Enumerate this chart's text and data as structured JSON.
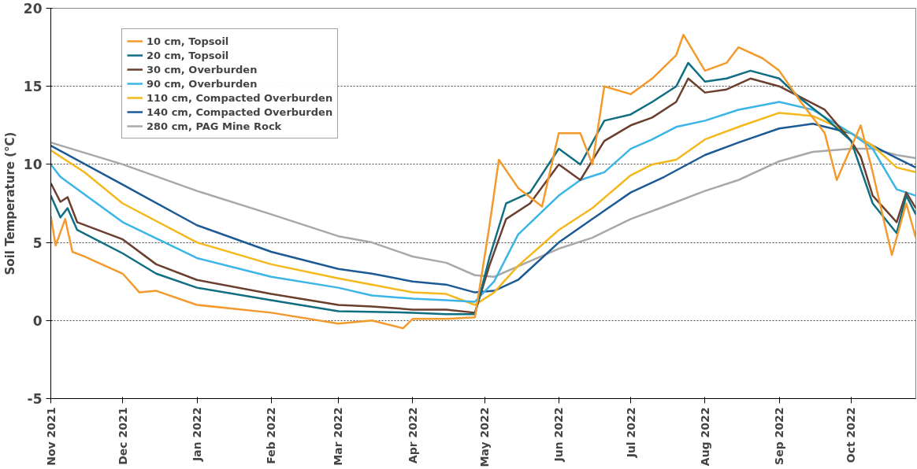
{
  "chart_data": {
    "type": "line",
    "ylabel": "Soil Temperature (°C)",
    "ylim": [
      -5,
      20
    ],
    "yticks": [
      -5,
      0,
      5,
      10,
      15,
      20
    ],
    "xlim": [
      "2021-11-01",
      "2022-10-28"
    ],
    "xticks": [
      {
        "value": "2021-11-01",
        "label": "Nov 2021"
      },
      {
        "value": "2021-12-01",
        "label": "Dec 2021"
      },
      {
        "value": "2022-01-01",
        "label": "Jan 2022"
      },
      {
        "value": "2022-02-01",
        "label": "Feb 2022"
      },
      {
        "value": "2022-03-01",
        "label": "Mar 2022"
      },
      {
        "value": "2022-04-01",
        "label": "Apr 2022"
      },
      {
        "value": "2022-05-01",
        "label": "May 2022"
      },
      {
        "value": "2022-06-01",
        "label": "Jun 2022"
      },
      {
        "value": "2022-07-01",
        "label": "Jul 2022"
      },
      {
        "value": "2022-08-01",
        "label": "Aug 2022"
      },
      {
        "value": "2022-09-01",
        "label": "Sep 2022"
      },
      {
        "value": "2022-10-01",
        "label": "Oct 2022"
      }
    ],
    "grid": "y",
    "legend": "top left",
    "marker": "none",
    "line_style": "solid",
    "series": [
      {
        "name": "10 cm, Topsoil",
        "color": "#f39a2c",
        "x": [
          "2021-11-01",
          "2021-11-03",
          "2021-11-07",
          "2021-11-10",
          "2021-11-15",
          "2021-12-01",
          "2021-12-08",
          "2021-12-15",
          "2022-01-01",
          "2022-02-01",
          "2022-03-01",
          "2022-03-15",
          "2022-03-28",
          "2022-04-01",
          "2022-04-15",
          "2022-04-27",
          "2022-05-03",
          "2022-05-07",
          "2022-05-15",
          "2022-05-25",
          "2022-06-01",
          "2022-06-10",
          "2022-06-15",
          "2022-06-20",
          "2022-07-01",
          "2022-07-10",
          "2022-07-20",
          "2022-07-23",
          "2022-08-01",
          "2022-08-10",
          "2022-08-15",
          "2022-08-25",
          "2022-09-01",
          "2022-09-10",
          "2022-09-20",
          "2022-09-25",
          "2022-10-05",
          "2022-10-10",
          "2022-10-18",
          "2022-10-24",
          "2022-10-28"
        ],
        "values": [
          6.7,
          4.8,
          6.5,
          4.4,
          4.1,
          3.0,
          1.8,
          1.9,
          1.0,
          0.5,
          -0.2,
          0.0,
          -0.5,
          0.1,
          0.1,
          0.2,
          6.0,
          10.3,
          8.5,
          7.3,
          12.0,
          12.0,
          10.0,
          15.0,
          14.5,
          15.5,
          17.0,
          18.3,
          16.0,
          16.5,
          17.5,
          16.8,
          16.0,
          14.0,
          12.0,
          9.0,
          12.5,
          9.5,
          4.2,
          7.5,
          5.3
        ]
      },
      {
        "name": "20 cm, Topsoil",
        "color": "#0f6e82",
        "x": [
          "2021-11-01",
          "2021-11-05",
          "2021-11-08",
          "2021-11-12",
          "2021-12-01",
          "2021-12-15",
          "2022-01-01",
          "2022-02-01",
          "2022-03-01",
          "2022-04-01",
          "2022-04-15",
          "2022-04-27",
          "2022-05-03",
          "2022-05-10",
          "2022-05-20",
          "2022-06-01",
          "2022-06-10",
          "2022-06-20",
          "2022-07-01",
          "2022-07-10",
          "2022-07-20",
          "2022-07-25",
          "2022-08-01",
          "2022-08-10",
          "2022-08-20",
          "2022-09-01",
          "2022-09-10",
          "2022-09-20",
          "2022-10-01",
          "2022-10-10",
          "2022-10-20",
          "2022-10-24",
          "2022-10-28"
        ],
        "values": [
          8.0,
          6.6,
          7.2,
          5.8,
          4.3,
          3.0,
          2.1,
          1.3,
          0.6,
          0.5,
          0.4,
          0.4,
          4.0,
          7.5,
          8.2,
          11.0,
          10.0,
          12.8,
          13.2,
          14.0,
          15.0,
          16.5,
          15.3,
          15.5,
          16.0,
          15.5,
          14.2,
          13.0,
          11.5,
          7.5,
          5.6,
          8.0,
          6.8
        ]
      },
      {
        "name": "30 cm, Overburden",
        "color": "#6b3f2e",
        "x": [
          "2021-11-01",
          "2021-11-05",
          "2021-11-08",
          "2021-11-12",
          "2021-12-01",
          "2021-12-15",
          "2022-01-01",
          "2022-02-01",
          "2022-03-01",
          "2022-03-15",
          "2022-04-01",
          "2022-04-15",
          "2022-04-27",
          "2022-05-03",
          "2022-05-10",
          "2022-05-20",
          "2022-06-01",
          "2022-06-10",
          "2022-06-20",
          "2022-07-01",
          "2022-07-10",
          "2022-07-20",
          "2022-07-25",
          "2022-08-01",
          "2022-08-10",
          "2022-08-20",
          "2022-09-01",
          "2022-09-10",
          "2022-09-20",
          "2022-10-01",
          "2022-10-05",
          "2022-10-10",
          "2022-10-20",
          "2022-10-24",
          "2022-10-28"
        ],
        "values": [
          8.8,
          7.6,
          7.9,
          6.3,
          5.2,
          3.6,
          2.6,
          1.7,
          1.0,
          0.9,
          0.7,
          0.7,
          0.5,
          3.5,
          6.5,
          7.5,
          10.0,
          9.0,
          11.5,
          12.5,
          13.0,
          14.0,
          15.5,
          14.6,
          14.8,
          15.5,
          15.0,
          14.3,
          13.5,
          11.5,
          10.5,
          8.0,
          6.3,
          8.2,
          7.2
        ]
      },
      {
        "name": "90 cm, Overburden",
        "color": "#3bb4e6",
        "x": [
          "2021-11-01",
          "2021-11-05",
          "2021-12-01",
          "2022-01-01",
          "2022-02-01",
          "2022-03-01",
          "2022-03-15",
          "2022-04-01",
          "2022-04-15",
          "2022-04-27",
          "2022-05-05",
          "2022-05-15",
          "2022-06-01",
          "2022-06-10",
          "2022-06-20",
          "2022-07-01",
          "2022-07-10",
          "2022-07-20",
          "2022-08-01",
          "2022-08-15",
          "2022-09-01",
          "2022-09-15",
          "2022-10-01",
          "2022-10-10",
          "2022-10-20",
          "2022-10-28"
        ],
        "values": [
          10.0,
          9.2,
          6.3,
          4.0,
          2.8,
          2.1,
          1.6,
          1.4,
          1.3,
          1.2,
          2.5,
          5.5,
          8.0,
          9.0,
          9.5,
          11.0,
          11.6,
          12.4,
          12.8,
          13.5,
          14.0,
          13.5,
          12.0,
          11.0,
          8.4,
          8.0
        ]
      },
      {
        "name": "110 cm, Compacted Overburden",
        "color": "#f5b81c",
        "x": [
          "2021-11-01",
          "2021-11-15",
          "2021-12-01",
          "2022-01-01",
          "2022-02-01",
          "2022-03-01",
          "2022-03-15",
          "2022-04-01",
          "2022-04-15",
          "2022-04-27",
          "2022-05-05",
          "2022-05-15",
          "2022-06-01",
          "2022-06-15",
          "2022-07-01",
          "2022-07-10",
          "2022-07-20",
          "2022-08-01",
          "2022-08-15",
          "2022-09-01",
          "2022-09-15",
          "2022-10-01",
          "2022-10-10",
          "2022-10-20",
          "2022-10-28"
        ],
        "values": [
          10.9,
          9.5,
          7.5,
          5.0,
          3.6,
          2.7,
          2.3,
          1.8,
          1.7,
          1.0,
          1.8,
          3.5,
          5.8,
          7.2,
          9.3,
          10.0,
          10.3,
          11.6,
          12.4,
          13.3,
          13.1,
          12.0,
          11.2,
          9.8,
          9.5
        ]
      },
      {
        "name": "140 cm, Compacted Overburden",
        "color": "#1b5a94",
        "x": [
          "2021-11-01",
          "2021-12-01",
          "2022-01-01",
          "2022-02-01",
          "2022-03-01",
          "2022-03-15",
          "2022-04-01",
          "2022-04-15",
          "2022-04-27",
          "2022-05-05",
          "2022-05-15",
          "2022-06-01",
          "2022-06-15",
          "2022-07-01",
          "2022-07-15",
          "2022-08-01",
          "2022-08-15",
          "2022-09-01",
          "2022-09-15",
          "2022-10-01",
          "2022-10-10",
          "2022-10-20",
          "2022-10-28"
        ],
        "values": [
          11.2,
          8.7,
          6.1,
          4.4,
          3.3,
          3.0,
          2.5,
          2.3,
          1.8,
          1.9,
          2.6,
          5.0,
          6.5,
          8.2,
          9.2,
          10.6,
          11.4,
          12.3,
          12.6,
          12.0,
          11.2,
          10.4,
          9.8
        ]
      },
      {
        "name": "280 cm, PAG Mine Rock",
        "color": "#a8a8a8",
        "x": [
          "2021-11-01",
          "2021-12-01",
          "2022-01-01",
          "2022-02-01",
          "2022-03-01",
          "2022-03-15",
          "2022-04-01",
          "2022-04-15",
          "2022-04-27",
          "2022-05-05",
          "2022-05-20",
          "2022-06-01",
          "2022-06-15",
          "2022-07-01",
          "2022-07-15",
          "2022-08-01",
          "2022-08-15",
          "2022-09-01",
          "2022-09-15",
          "2022-10-01",
          "2022-10-10",
          "2022-10-20",
          "2022-10-28"
        ],
        "values": [
          11.4,
          10.0,
          8.3,
          6.8,
          5.4,
          5.0,
          4.1,
          3.7,
          2.9,
          2.8,
          3.8,
          4.6,
          5.3,
          6.5,
          7.3,
          8.3,
          9.0,
          10.2,
          10.8,
          11.0,
          11.0,
          10.6,
          10.4
        ]
      }
    ]
  }
}
